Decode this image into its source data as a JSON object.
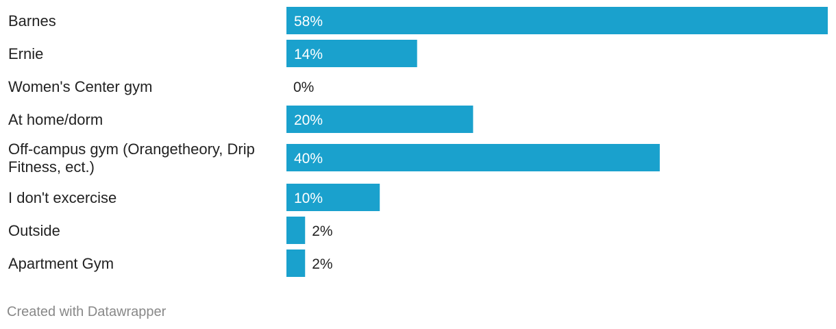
{
  "chart_data": {
    "type": "bar",
    "orientation": "horizontal",
    "categories": [
      [
        "Barnes"
      ],
      [
        "Ernie"
      ],
      [
        "Women's Center gym"
      ],
      [
        "At home/dorm"
      ],
      [
        "Off-campus gym (Orangetheory, Drip",
        "Fitness, ect.)"
      ],
      [
        "I don't excercise"
      ],
      [
        "Outside"
      ],
      [
        "Apartment Gym"
      ]
    ],
    "values": [
      58,
      14,
      0,
      20,
      40,
      10,
      2,
      2
    ],
    "value_labels": [
      "58%",
      "14%",
      "0%",
      "20%",
      "40%",
      "10%",
      "2%",
      "2%"
    ],
    "unit": "%",
    "xlim": [
      0,
      58
    ],
    "bar_color": "#1aa1cd",
    "grid": false
  },
  "footer": {
    "credit": "Created with Datawrapper"
  }
}
